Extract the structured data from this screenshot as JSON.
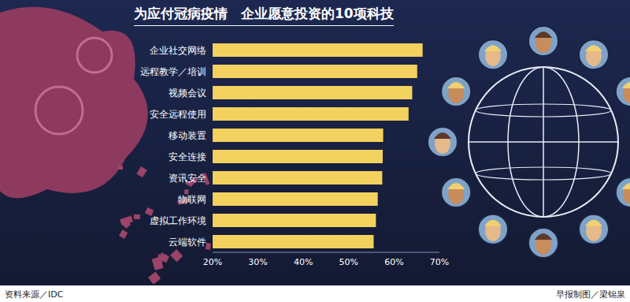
{
  "chart_data": {
    "type": "bar",
    "orientation": "horizontal",
    "title": "为应付冠病疫情　企业愿意投资的10项科技",
    "categories": [
      "企业社交网络",
      "远程教学／培训",
      "视频会议",
      "安全远程使用",
      "移动装置",
      "安全连接",
      "资讯安全",
      "物联网",
      "虚拟工作环境",
      "云端软件"
    ],
    "values": [
      66.3,
      65.1,
      64,
      63.2,
      57.6,
      57.5,
      57.4,
      56.4,
      56,
      55.5
    ],
    "color": "#f2d15e",
    "xlim": [
      20,
      70
    ],
    "xticks": [
      {
        "value": 20,
        "label": "20%"
      },
      {
        "value": 30,
        "label": "30%"
      },
      {
        "value": 40,
        "label": "40%"
      },
      {
        "value": 50,
        "label": "50%"
      },
      {
        "value": 60,
        "label": "60%"
      },
      {
        "value": 70,
        "label": "70%"
      }
    ],
    "grid": false,
    "source": "资料来源／IDC",
    "credit": "早报制图／梁锦泉"
  }
}
